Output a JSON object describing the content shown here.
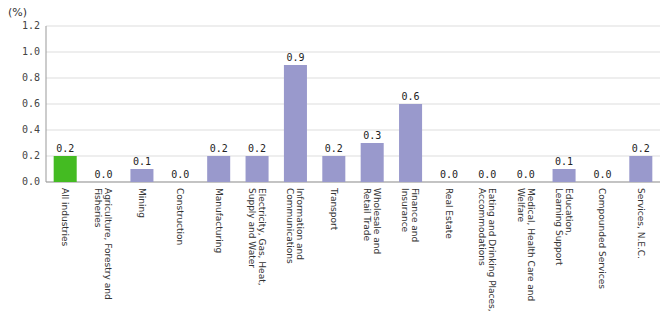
{
  "chart_data": {
    "type": "bar",
    "ylabel": "(%)",
    "categories": [
      "All industries",
      "Agriculture, Forestry and\nFisheries",
      "Mining",
      "Construction",
      "Manufacturing",
      "Electricity, Gas, Heat,\nSupply and Water",
      "Information and\nCommunications",
      "Transport",
      "Wholesale and\nRetail Trade",
      "Finance and\nInsurance",
      "Real Estate",
      "Eating and Drinking Places,\nAccommodations",
      "Medical, Health Care and\nWelfare",
      "Education,\nLearning Support",
      "Compounded Services",
      "Services, N.E.C."
    ],
    "values": [
      0.2,
      0.0,
      0.1,
      0.0,
      0.2,
      0.2,
      0.9,
      0.2,
      0.3,
      0.6,
      0.0,
      0.0,
      0.0,
      0.1,
      0.0,
      0.2
    ],
    "value_labels": [
      "0.2",
      "0.0",
      "0.1",
      "0.0",
      "0.2",
      "0.2",
      "0.9",
      "0.2",
      "0.3",
      "0.6",
      "0.0",
      "0.0",
      "0.0",
      "0.1",
      "0.0",
      "0.2"
    ],
    "colors": [
      "#44bb22",
      "#9999cc",
      "#9999cc",
      "#9999cc",
      "#9999cc",
      "#9999cc",
      "#9999cc",
      "#9999cc",
      "#9999cc",
      "#9999cc",
      "#9999cc",
      "#9999cc",
      "#9999cc",
      "#9999cc",
      "#9999cc",
      "#9999cc"
    ],
    "ylim": [
      0.0,
      1.2
    ],
    "yticks": [
      {
        "value": 0.0,
        "label": "0.0"
      },
      0.2,
      0.4,
      0.6,
      0.8,
      {
        "value": 1.0,
        "label": "1.0"
      },
      1.2
    ],
    "grid": true,
    "data_labels": true
  }
}
